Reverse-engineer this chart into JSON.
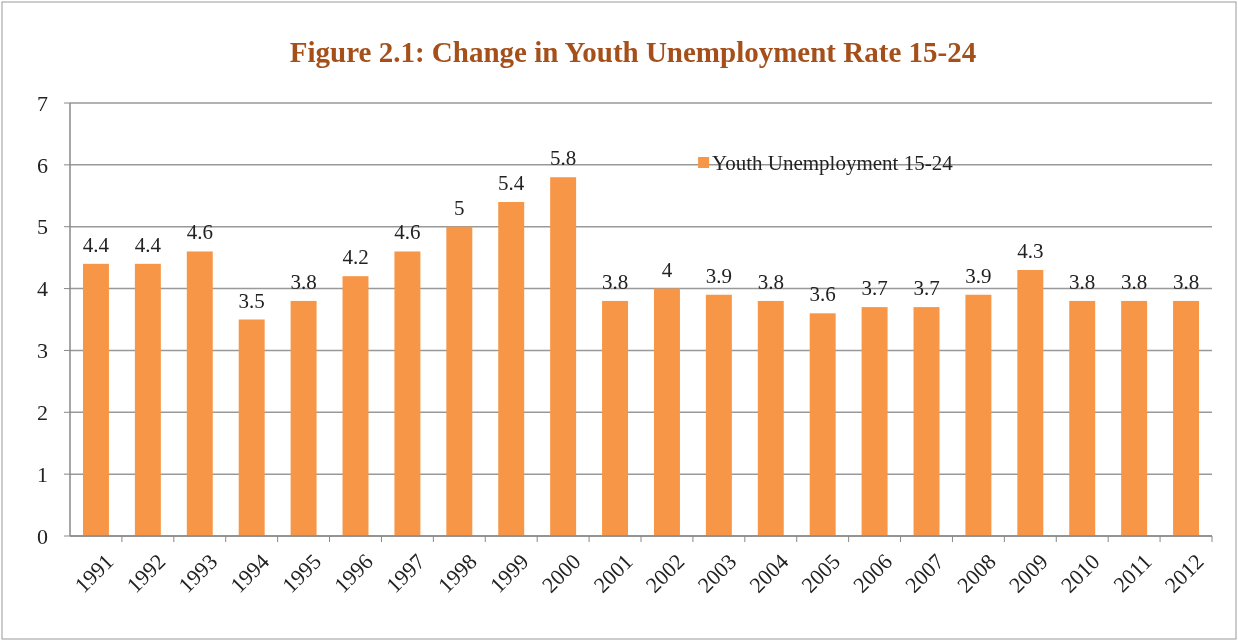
{
  "chart_data": {
    "type": "bar",
    "title": "Figure 2.1: Change in Youth Unemployment Rate 15-24",
    "categories": [
      "1991",
      "1992",
      "1993",
      "1994",
      "1995",
      "1996",
      "1997",
      "1998",
      "1999",
      "2000",
      "2001",
      "2002",
      "2003",
      "2004",
      "2005",
      "2006",
      "2007",
      "2008",
      "2009",
      "2010",
      "2011",
      "2012"
    ],
    "series": [
      {
        "name": "Youth Unemployment 15-24",
        "color": "#f79646",
        "values": [
          4.4,
          4.4,
          4.6,
          3.5,
          3.8,
          4.2,
          4.6,
          5,
          5.4,
          5.8,
          3.8,
          4,
          3.9,
          3.8,
          3.6,
          3.7,
          3.7,
          3.9,
          4.3,
          3.8,
          3.8,
          3.8
        ]
      }
    ],
    "ylim": [
      0,
      7
    ],
    "yticks": [
      0,
      1,
      2,
      3,
      4,
      5,
      6,
      7
    ],
    "grid": "y",
    "legend": "top right",
    "data_labels": true
  }
}
